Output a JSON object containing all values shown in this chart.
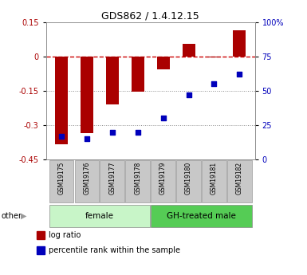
{
  "title": "GDS862 / 1.4.12.15",
  "samples": [
    "GSM19175",
    "GSM19176",
    "GSM19177",
    "GSM19178",
    "GSM19179",
    "GSM19180",
    "GSM19181",
    "GSM19182"
  ],
  "log_ratio": [
    -0.385,
    -0.335,
    -0.21,
    -0.155,
    -0.055,
    0.055,
    -0.005,
    0.115
  ],
  "percentile_rank": [
    17,
    15,
    20,
    20,
    30,
    47,
    55,
    62
  ],
  "groups": [
    {
      "label": "female",
      "start": 0,
      "end": 4,
      "color": "#c8f5c8"
    },
    {
      "label": "GH-treated male",
      "start": 4,
      "end": 8,
      "color": "#55cc55"
    }
  ],
  "ylim_left": [
    -0.45,
    0.15
  ],
  "ylim_right": [
    0,
    100
  ],
  "yticks_left": [
    0.15,
    0.0,
    -0.15,
    -0.3,
    -0.45
  ],
  "ytick_labels_left": [
    "0.15",
    "0",
    "-0.15",
    "-0.3",
    "-0.45"
  ],
  "yticks_right": [
    100,
    75,
    50,
    25,
    0
  ],
  "ytick_labels_right": [
    "100%",
    "75",
    "50",
    "25",
    "0"
  ],
  "bar_color": "#aa0000",
  "dot_color": "#0000bb",
  "hline_color": "#cc0000",
  "dotted_line_color": "#888888",
  "bg_color": "#ffffff",
  "bar_width": 0.5,
  "legend_bar_label": "log ratio",
  "legend_dot_label": "percentile rank within the sample"
}
